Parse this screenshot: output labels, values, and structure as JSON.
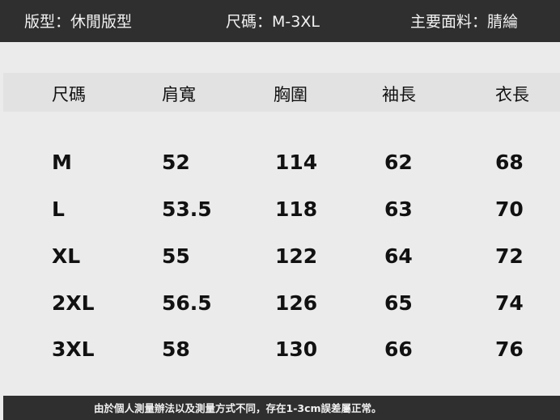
{
  "header": {
    "fit": "版型：休閒版型",
    "sizes": "尺碼：M-3XL",
    "fabric": "主要面料：腈綸"
  },
  "table": {
    "columns": [
      "尺碼",
      "肩寬",
      "胸圍",
      "袖長",
      "衣長"
    ],
    "rows": [
      [
        "M",
        "52",
        "114",
        "62",
        "68"
      ],
      [
        "L",
        "53.5",
        "118",
        "63",
        "70"
      ],
      [
        "XL",
        "55",
        "122",
        "64",
        "72"
      ],
      [
        "2XL",
        "56.5",
        "126",
        "65",
        "74"
      ],
      [
        "3XL",
        "58",
        "130",
        "66",
        "76"
      ]
    ]
  },
  "footer": {
    "note": "由於個人測量辦法以及測量方式不同，存在1-3cm誤差屬正常。"
  }
}
